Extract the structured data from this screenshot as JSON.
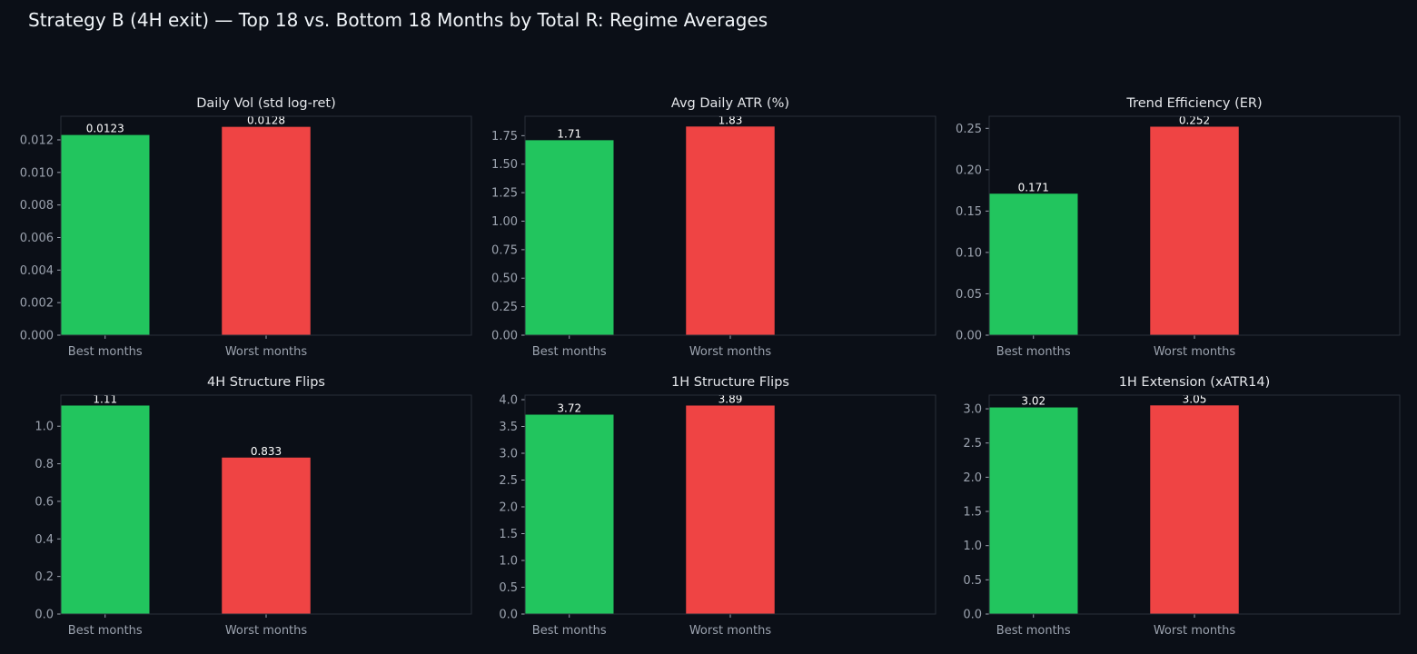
{
  "title": "Strategy B (4H exit) — Top 18 vs. Bottom 18 Months by Total R: Regime Averages",
  "colors": {
    "background": "#0b0f17",
    "best": "#22c55e",
    "worst": "#ef4444",
    "frame": "#2a2f3a",
    "tick_text": "#9ca3af",
    "title_text": "#f1f5f9"
  },
  "chart_data": [
    {
      "type": "bar",
      "title": "Daily Vol (std log-ret)",
      "categories": [
        "Best months",
        "Worst months"
      ],
      "values": [
        0.0123,
        0.0128
      ],
      "value_labels": [
        "0.0123",
        "0.0128"
      ],
      "ylim": [
        0,
        0.01345
      ],
      "yticks": [
        0.0,
        0.002,
        0.004,
        0.006,
        0.008,
        0.01,
        0.012
      ],
      "ytick_labels": [
        "0.000",
        "0.002",
        "0.004",
        "0.006",
        "0.008",
        "0.010",
        "0.012"
      ],
      "xlabel": "",
      "ylabel": ""
    },
    {
      "type": "bar",
      "title": "Avg Daily ATR (%)",
      "categories": [
        "Best months",
        "Worst months"
      ],
      "values": [
        1.71,
        1.83
      ],
      "value_labels": [
        "1.71",
        "1.83"
      ],
      "ylim": [
        0,
        1.92
      ],
      "yticks": [
        0,
        0.25,
        0.5,
        0.75,
        1.0,
        1.25,
        1.5,
        1.75
      ],
      "ytick_labels": [
        "0.00",
        "0.25",
        "0.50",
        "0.75",
        "1.00",
        "1.25",
        "1.50",
        "1.75"
      ],
      "xlabel": "",
      "ylabel": ""
    },
    {
      "type": "bar",
      "title": "Trend Efficiency (ER)",
      "categories": [
        "Best months",
        "Worst months"
      ],
      "values": [
        0.171,
        0.252
      ],
      "value_labels": [
        "0.171",
        "0.252"
      ],
      "ylim": [
        0,
        0.2646
      ],
      "yticks": [
        0,
        0.05,
        0.1,
        0.15,
        0.2,
        0.25
      ],
      "ytick_labels": [
        "0.00",
        "0.05",
        "0.10",
        "0.15",
        "0.20",
        "0.25"
      ],
      "xlabel": "",
      "ylabel": ""
    },
    {
      "type": "bar",
      "title": "4H Structure Flips",
      "categories": [
        "Best months",
        "Worst months"
      ],
      "values": [
        1.11,
        0.833
      ],
      "value_labels": [
        "1.11",
        "0.833"
      ],
      "ylim": [
        0,
        1.1655
      ],
      "yticks": [
        0,
        0.2,
        0.4,
        0.6,
        0.8,
        1.0
      ],
      "ytick_labels": [
        "0.0",
        "0.2",
        "0.4",
        "0.6",
        "0.8",
        "1.0"
      ],
      "xlabel": "",
      "ylabel": ""
    },
    {
      "type": "bar",
      "title": "1H Structure Flips",
      "categories": [
        "Best months",
        "Worst months"
      ],
      "values": [
        3.72,
        3.89
      ],
      "value_labels": [
        "3.72",
        "3.89"
      ],
      "ylim": [
        0,
        4.0845
      ],
      "yticks": [
        0,
        0.5,
        1.0,
        1.5,
        2.0,
        2.5,
        3.0,
        3.5,
        4.0
      ],
      "ytick_labels": [
        "0.0",
        "0.5",
        "1.0",
        "1.5",
        "2.0",
        "2.5",
        "3.0",
        "3.5",
        "4.0"
      ],
      "xlabel": "",
      "ylabel": ""
    },
    {
      "type": "bar",
      "title": "1H Extension (xATR14)",
      "categories": [
        "Best months",
        "Worst months"
      ],
      "values": [
        3.02,
        3.05
      ],
      "value_labels": [
        "3.02",
        "3.05"
      ],
      "ylim": [
        0,
        3.2
      ],
      "yticks": [
        0,
        0.5,
        1.0,
        1.5,
        2.0,
        2.5,
        3.0
      ],
      "ytick_labels": [
        "0.0",
        "0.5",
        "1.0",
        "1.5",
        "2.0",
        "2.5",
        "3.0"
      ],
      "xlabel": "",
      "ylabel": ""
    }
  ]
}
